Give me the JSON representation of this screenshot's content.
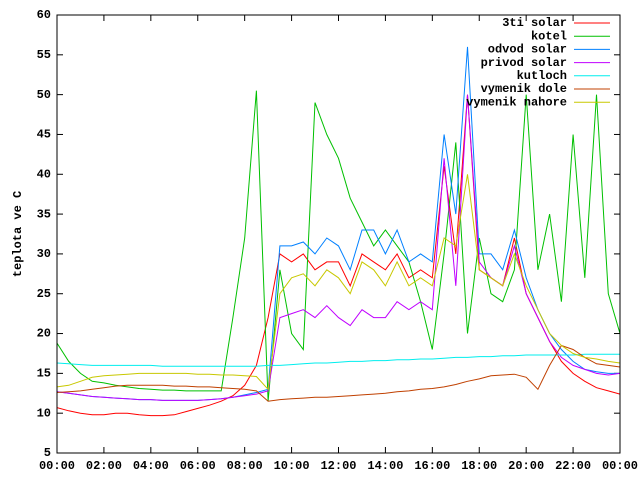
{
  "chart_data": {
    "type": "line",
    "ylabel": "teplota ve C",
    "x": [
      0,
      0.5,
      1,
      1.5,
      2,
      2.5,
      3,
      3.5,
      4,
      4.5,
      5,
      5.5,
      6,
      6.5,
      7,
      7.5,
      8,
      8.5,
      9,
      9.5,
      10,
      10.5,
      11,
      11.5,
      12,
      12.5,
      13,
      13.5,
      14,
      14.5,
      15,
      15.5,
      16,
      16.5,
      17,
      17.5,
      18,
      18.5,
      19,
      19.5,
      20,
      20.5,
      21,
      21.5,
      22,
      22.5,
      23,
      23.5,
      24
    ],
    "xlim": [
      0,
      24
    ],
    "xticks": [
      {
        "value": 0,
        "label": "00:00"
      },
      {
        "value": 2,
        "label": "02:00"
      },
      {
        "value": 4,
        "label": "04:00"
      },
      {
        "value": 6,
        "label": "06:00"
      },
      {
        "value": 8,
        "label": "08:00"
      },
      {
        "value": 10,
        "label": "10:00"
      },
      {
        "value": 12,
        "label": "12:00"
      },
      {
        "value": 14,
        "label": "14:00"
      },
      {
        "value": 16,
        "label": "16:00"
      },
      {
        "value": 18,
        "label": "18:00"
      },
      {
        "value": 20,
        "label": "20:00"
      },
      {
        "value": 22,
        "label": "22:00"
      },
      {
        "value": 24,
        "label": "00:00"
      }
    ],
    "ylim": [
      5,
      60
    ],
    "yticks": [
      5,
      10,
      15,
      20,
      25,
      30,
      35,
      40,
      45,
      50,
      55,
      60
    ],
    "legend": "top-right",
    "series": [
      {
        "name": "3ti solar",
        "color": "#ff0000",
        "values": [
          10.7,
          10.3,
          10,
          9.8,
          9.8,
          10,
          10,
          9.8,
          9.7,
          9.7,
          9.8,
          10.2,
          10.6,
          11,
          11.5,
          12.2,
          13.5,
          16,
          22,
          30,
          29,
          30,
          28,
          29,
          29,
          26,
          30,
          29,
          28,
          30,
          27,
          28,
          27,
          41,
          30,
          50,
          28,
          27,
          26,
          32,
          25,
          22,
          19,
          16.5,
          15,
          14,
          13.2,
          12.8,
          12.4
        ]
      },
      {
        "name": "kotel",
        "color": "#00c000",
        "values": [
          18.8,
          16.5,
          15,
          14,
          13.8,
          13.5,
          13.3,
          13.1,
          13,
          12.9,
          12.9,
          12.8,
          12.8,
          12.8,
          12.8,
          22,
          32,
          50.5,
          11.5,
          28,
          20,
          18,
          49,
          45,
          42,
          37,
          34,
          31,
          33,
          31,
          29,
          24,
          18,
          30,
          44,
          20,
          32,
          25,
          24,
          28,
          50,
          28,
          35,
          24,
          45,
          27,
          50,
          25,
          20
        ]
      },
      {
        "name": "odvod solar",
        "color": "#0080ff",
        "values": [
          12.7,
          12.5,
          12.3,
          12.1,
          12,
          11.9,
          11.8,
          11.7,
          11.7,
          11.6,
          11.6,
          11.6,
          11.6,
          11.7,
          11.8,
          12,
          12.3,
          12.6,
          13,
          31,
          31,
          31.5,
          30,
          32,
          31,
          28,
          33,
          33,
          30,
          33,
          29,
          30,
          29,
          45,
          35,
          56,
          30,
          30,
          28,
          33,
          27,
          23,
          20,
          18,
          16.5,
          15.5,
          15.2,
          15,
          15
        ]
      },
      {
        "name": "privod solar",
        "color": "#c000ff",
        "values": [
          12.7,
          12.5,
          12.3,
          12.1,
          12,
          11.9,
          11.8,
          11.7,
          11.7,
          11.6,
          11.6,
          11.6,
          11.6,
          11.7,
          11.8,
          12,
          12.2,
          12.4,
          12.8,
          22,
          22.5,
          23,
          22,
          23.5,
          22,
          21,
          23,
          22,
          22,
          24,
          23,
          24,
          23,
          42,
          26,
          50,
          29,
          27,
          26,
          31,
          25,
          22,
          19,
          17,
          16,
          15.5,
          15,
          14.8,
          15
        ]
      },
      {
        "name": "kutloch",
        "color": "#00eeee",
        "values": [
          16.3,
          16.2,
          16.1,
          16,
          16,
          16,
          16,
          16,
          16,
          15.9,
          15.9,
          15.9,
          15.9,
          15.9,
          15.9,
          15.9,
          15.9,
          15.9,
          16,
          16,
          16.1,
          16.2,
          16.3,
          16.3,
          16.4,
          16.5,
          16.5,
          16.6,
          16.6,
          16.7,
          16.7,
          16.8,
          16.8,
          16.9,
          17,
          17,
          17.1,
          17.1,
          17.2,
          17.2,
          17.3,
          17.3,
          17.3,
          17.3,
          17.3,
          17.4,
          17.4,
          17.4,
          17.4
        ]
      },
      {
        "name": "vymenik dole",
        "color": "#c04000",
        "values": [
          12.6,
          12.7,
          12.8,
          13,
          13.2,
          13.4,
          13.5,
          13.5,
          13.5,
          13.5,
          13.4,
          13.4,
          13.3,
          13.3,
          13.2,
          13.1,
          13,
          12.8,
          11.5,
          11.7,
          11.8,
          11.9,
          12,
          12,
          12.1,
          12.2,
          12.3,
          12.4,
          12.5,
          12.7,
          12.8,
          13,
          13.1,
          13.3,
          13.6,
          14,
          14.3,
          14.7,
          14.8,
          14.9,
          14.5,
          13,
          16,
          18.5,
          18,
          17,
          16.2,
          16,
          15.8
        ]
      },
      {
        "name": "vymenik nahore",
        "color": "#c8c800",
        "values": [
          13.3,
          13.5,
          14,
          14.5,
          14.7,
          14.8,
          14.9,
          15,
          15,
          15,
          15,
          15,
          14.9,
          14.9,
          14.8,
          14.8,
          14.7,
          14.6,
          13,
          25,
          27,
          27.5,
          26,
          28,
          27,
          25,
          29,
          28,
          26,
          29,
          26,
          27,
          26,
          32,
          31,
          40,
          28,
          27,
          26,
          30,
          26,
          23,
          20,
          18.5,
          17.5,
          17,
          16.8,
          16.5,
          16.3
        ]
      }
    ]
  }
}
